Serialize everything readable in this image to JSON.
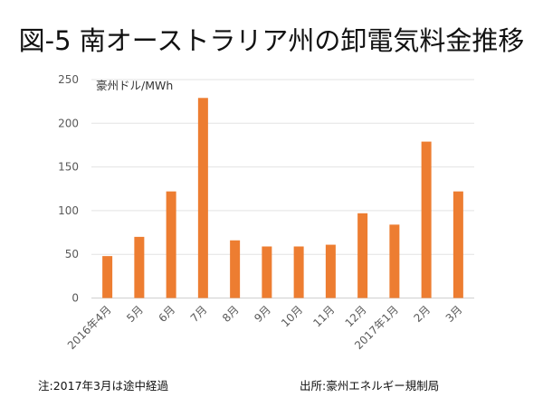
{
  "chart_data": {
    "type": "bar",
    "title": "図-5 南オーストラリア州の卸電気料金推移",
    "unit_label": "豪州ドル/MWh",
    "xlabel": "",
    "ylabel": "豪州ドル/MWh",
    "ylim": [
      0,
      250
    ],
    "yticks": [
      0,
      50,
      100,
      150,
      200,
      250
    ],
    "ytick_labels": [
      "0",
      "50",
      "100",
      "150",
      "200",
      "250"
    ],
    "grid": true,
    "legend": "none",
    "bar_color": "#ED7D31",
    "categories": [
      "2016年4月",
      "5月",
      "6月",
      "7月",
      "8月",
      "9月",
      "10月",
      "11月",
      "12月",
      "2017年1月",
      "2月",
      "3月"
    ],
    "values": [
      48,
      70,
      122,
      229,
      66,
      59,
      59,
      61,
      97,
      84,
      179,
      122
    ]
  },
  "footer": {
    "note": "注:2017年3月は途中経過",
    "source": "出所:豪州エネルギー規制局"
  }
}
